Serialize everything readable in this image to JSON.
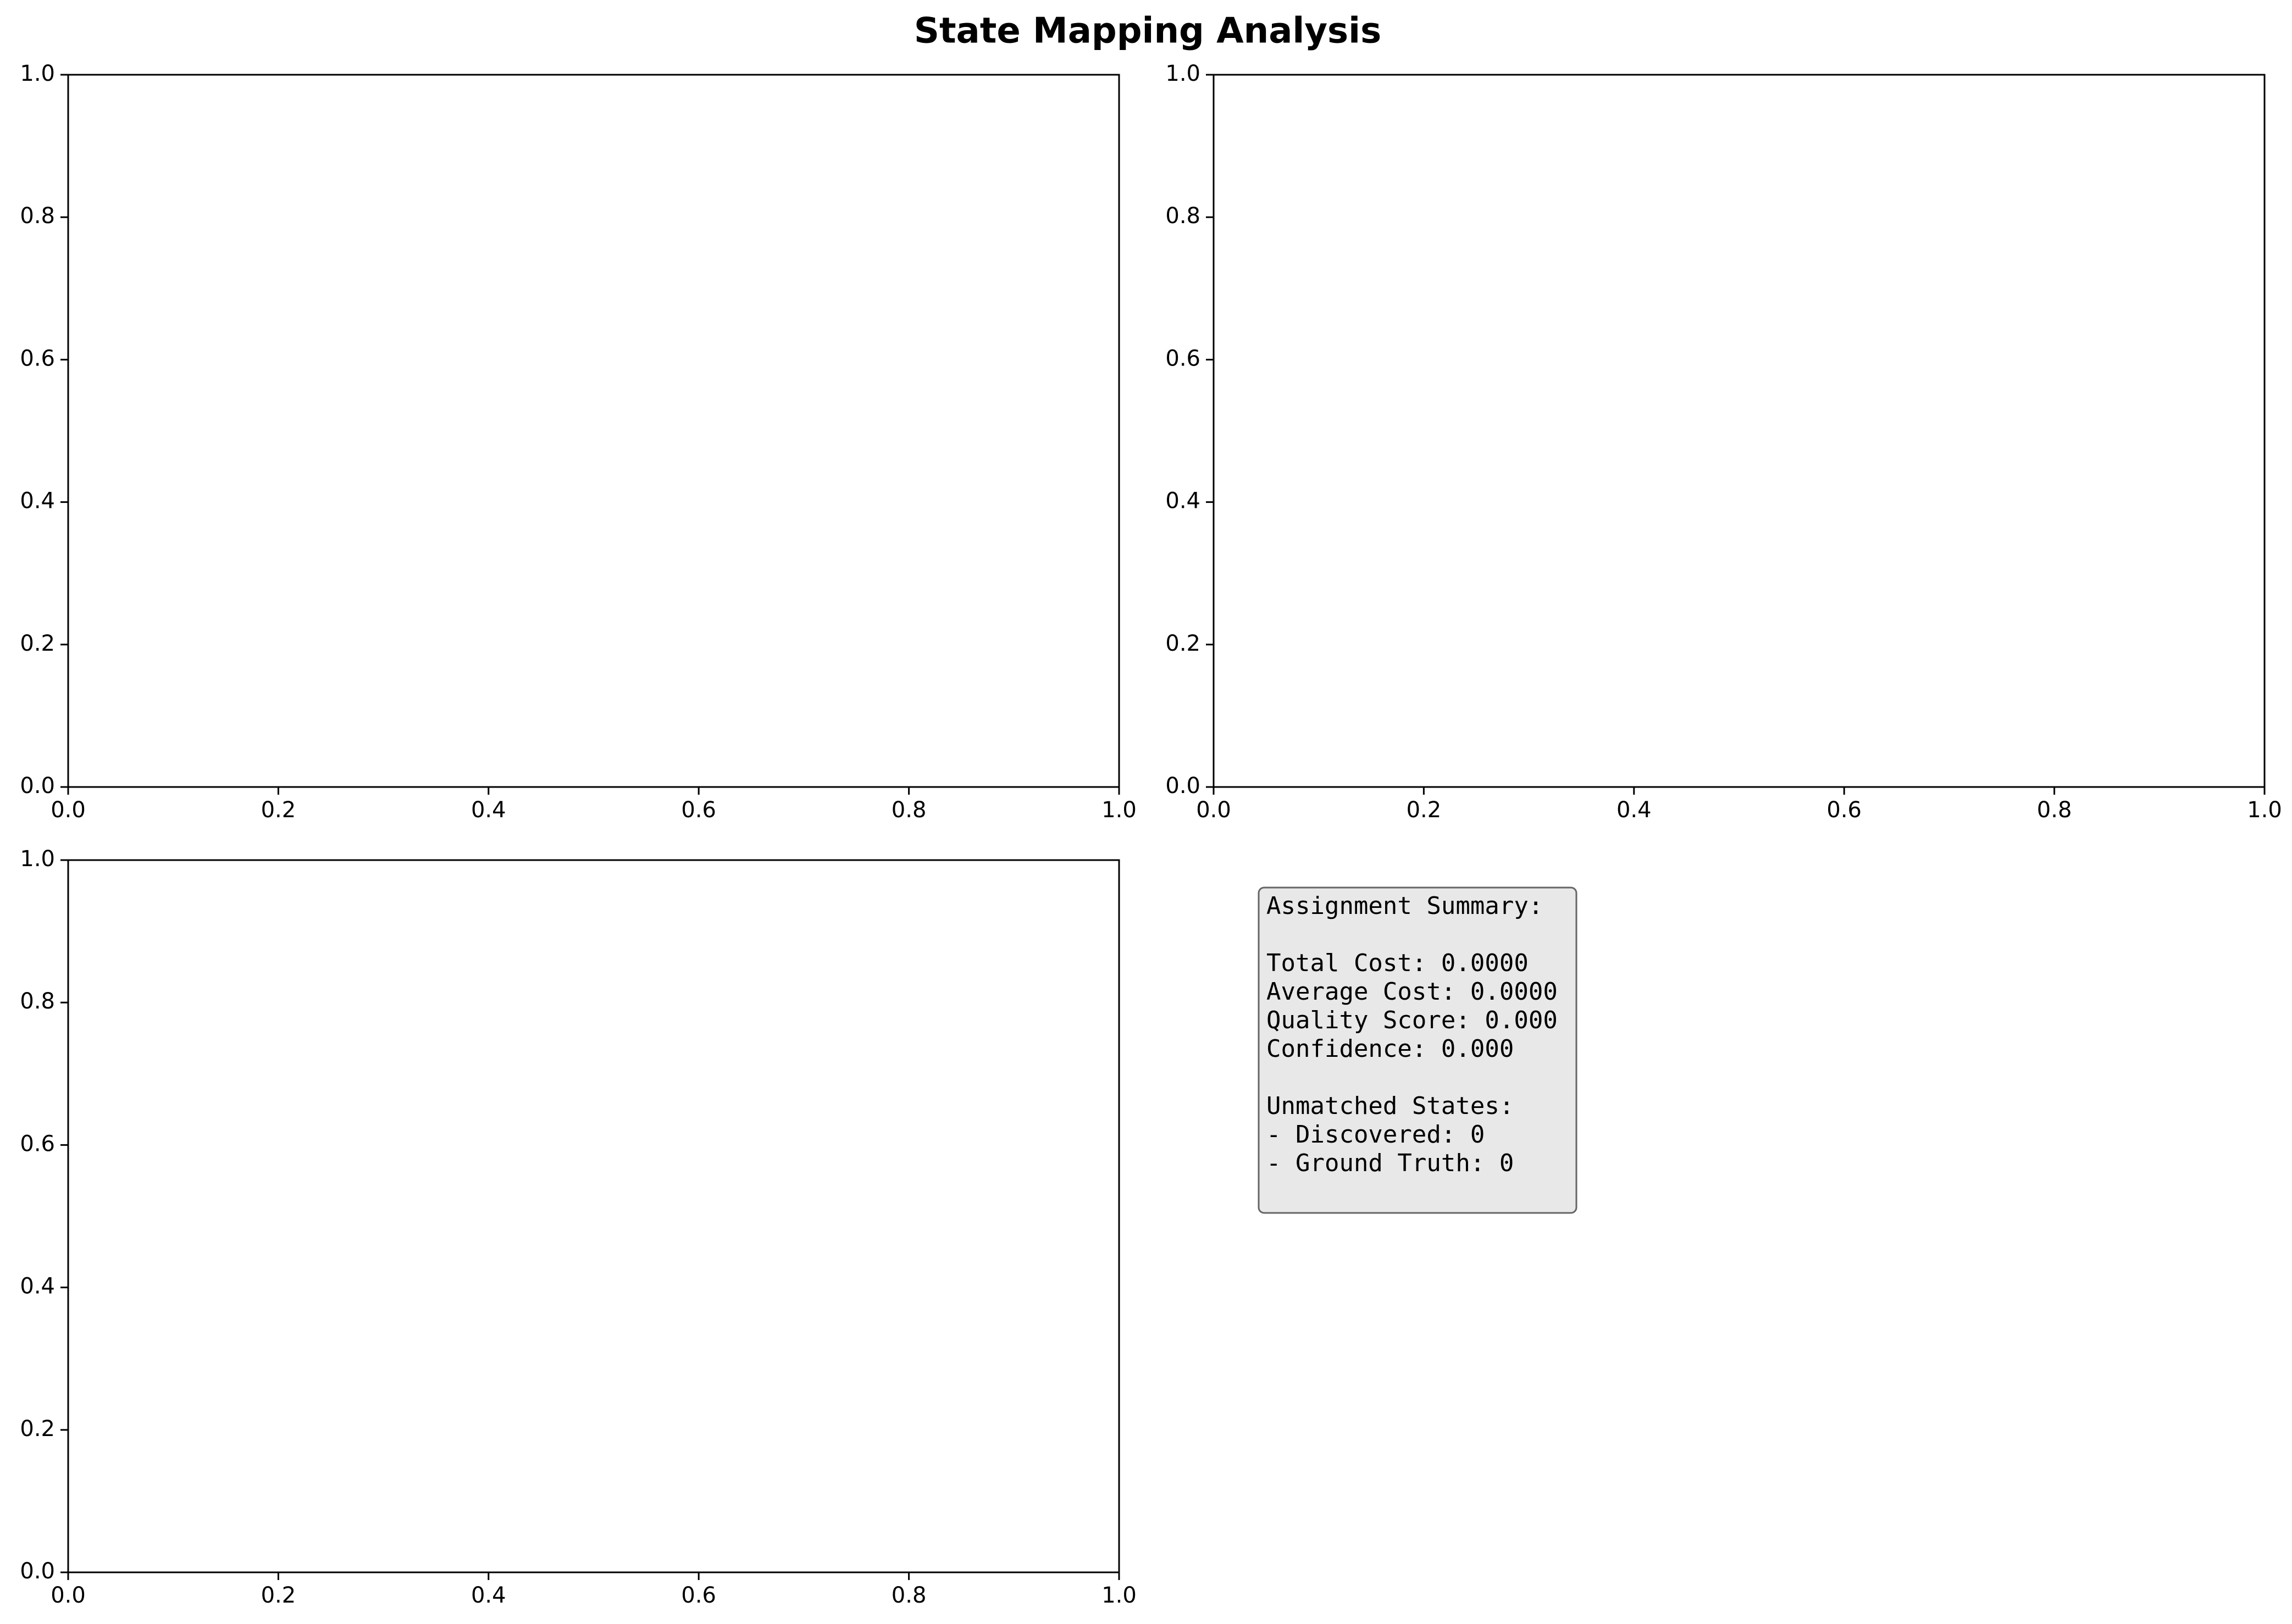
{
  "figure": {
    "title": "State Mapping Analysis"
  },
  "chart_data": [
    {
      "type": "scatter",
      "panel": "top-left",
      "x": [],
      "y": [],
      "xlim": [
        0.0,
        1.0
      ],
      "ylim": [
        0.0,
        1.0
      ],
      "xticks": [
        "0.0",
        "0.2",
        "0.4",
        "0.6",
        "0.8",
        "1.0"
      ],
      "yticks": [
        "0.0",
        "0.2",
        "0.4",
        "0.6",
        "0.8",
        "1.0"
      ],
      "grid": false
    },
    {
      "type": "scatter",
      "panel": "top-right",
      "x": [],
      "y": [],
      "xlim": [
        0.0,
        1.0
      ],
      "ylim": [
        0.0,
        1.0
      ],
      "xticks": [
        "0.0",
        "0.2",
        "0.4",
        "0.6",
        "0.8",
        "1.0"
      ],
      "yticks": [
        "0.0",
        "0.2",
        "0.4",
        "0.6",
        "0.8",
        "1.0"
      ],
      "grid": false
    },
    {
      "type": "scatter",
      "panel": "bottom-left",
      "x": [],
      "y": [],
      "xlim": [
        0.0,
        1.0
      ],
      "ylim": [
        0.0,
        1.0
      ],
      "xticks": [
        "0.0",
        "0.2",
        "0.4",
        "0.6",
        "0.8",
        "1.0"
      ],
      "yticks": [
        "0.0",
        "0.2",
        "0.4",
        "0.6",
        "0.8",
        "1.0"
      ],
      "grid": false
    }
  ],
  "summary": {
    "lines": [
      "Assignment Summary:",
      "",
      "Total Cost: 0.0000",
      "Average Cost: 0.0000",
      "Quality Score: 0.000",
      "Confidence: 0.000",
      "",
      "Unmatched States:",
      "- Discovered: 0",
      "- Ground Truth: 0"
    ],
    "box_color": "#e8e8e8",
    "border_color": "#666666"
  }
}
